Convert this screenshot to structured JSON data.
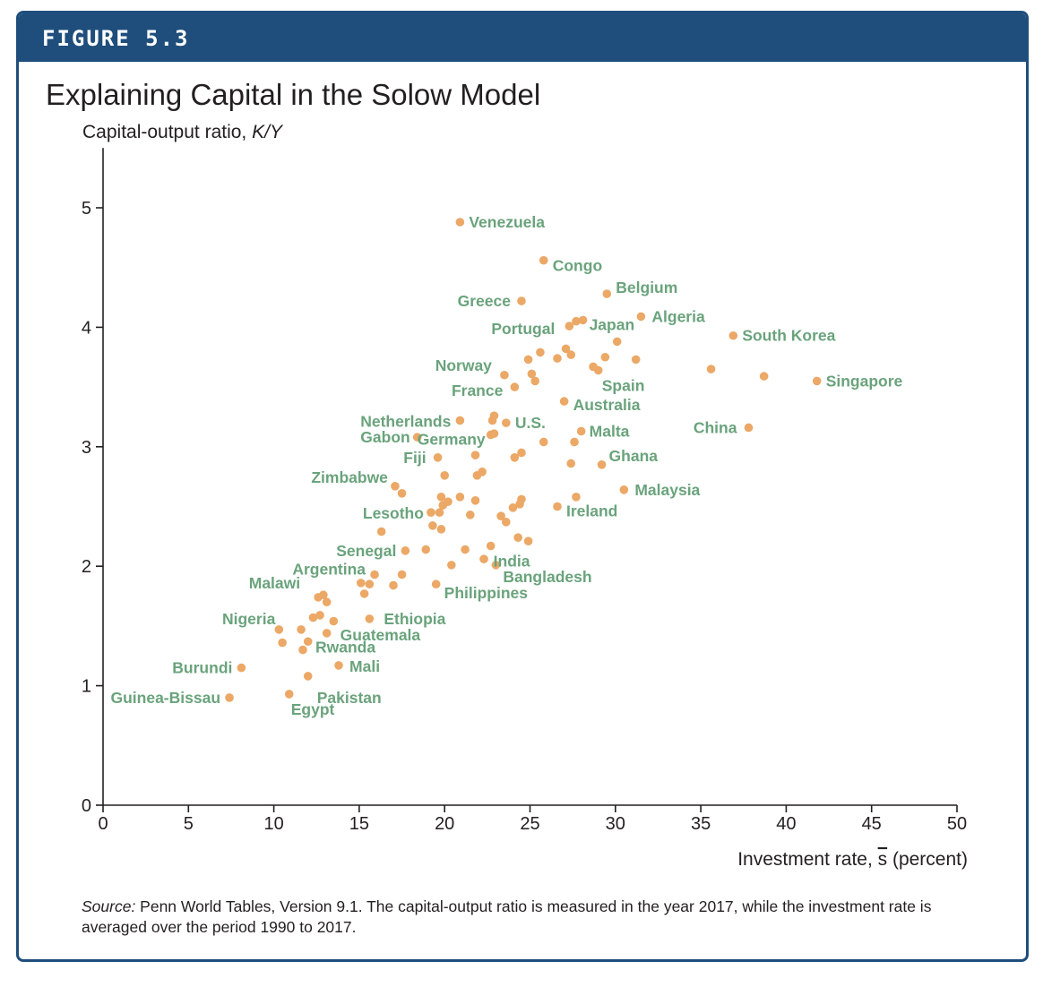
{
  "figure_label": "FIGURE 5.3",
  "colors": {
    "banner": "#1f4e7c",
    "point": "#eba866",
    "label": "#6aa37c",
    "text": "#231f20"
  },
  "source_note": {
    "prefix": "Source:",
    "text": " Penn World Tables, Version 9.1. The capital-output ratio is measured in the year 2017, while the investment rate is averaged over the period 1990 to 2017."
  },
  "chart_data": {
    "type": "scatter",
    "title": "Explaining Capital in the Solow Model",
    "ylabel": "Capital-output ratio, ",
    "ylabel_italic": "K/Y",
    "xlabel": "Investment rate, ",
    "xlabel_symbol": "s",
    "xlabel_suffix": " (percent)",
    "xlim": [
      0,
      50
    ],
    "ylim": [
      0,
      5.5
    ],
    "xticks": [
      0,
      5,
      10,
      15,
      20,
      25,
      30,
      35,
      40,
      45,
      50
    ],
    "yticks": [
      0,
      1,
      2,
      3,
      4,
      5
    ],
    "grid": false,
    "points": [
      {
        "x": 20.9,
        "y": 4.88,
        "label": "Venezuela"
      },
      {
        "x": 25.8,
        "y": 4.56,
        "label": "Congo"
      },
      {
        "x": 29.5,
        "y": 4.28,
        "label": "Belgium"
      },
      {
        "x": 24.5,
        "y": 4.22,
        "label": "Greece"
      },
      {
        "x": 31.5,
        "y": 4.09,
        "label": "Algeria"
      },
      {
        "x": 27.7,
        "y": 4.05
      },
      {
        "x": 28.1,
        "y": 4.06,
        "label": "Japan"
      },
      {
        "x": 27.3,
        "y": 4.01,
        "label": "Portugal"
      },
      {
        "x": 36.9,
        "y": 3.93,
        "label": "South Korea"
      },
      {
        "x": 30.1,
        "y": 3.88
      },
      {
        "x": 27.1,
        "y": 3.82
      },
      {
        "x": 25.6,
        "y": 3.79
      },
      {
        "x": 24.9,
        "y": 3.73
      },
      {
        "x": 26.6,
        "y": 3.74
      },
      {
        "x": 27.4,
        "y": 3.77
      },
      {
        "x": 29.4,
        "y": 3.75
      },
      {
        "x": 31.2,
        "y": 3.73
      },
      {
        "x": 28.7,
        "y": 3.67
      },
      {
        "x": 29.0,
        "y": 3.64,
        "label": "Spain"
      },
      {
        "x": 35.6,
        "y": 3.65
      },
      {
        "x": 38.7,
        "y": 3.59
      },
      {
        "x": 41.8,
        "y": 3.55,
        "label": "Singapore"
      },
      {
        "x": 23.5,
        "y": 3.6,
        "label": "Norway"
      },
      {
        "x": 25.1,
        "y": 3.61
      },
      {
        "x": 25.3,
        "y": 3.55
      },
      {
        "x": 24.1,
        "y": 3.5,
        "label": "France"
      },
      {
        "x": 27.0,
        "y": 3.38,
        "label": "Australia"
      },
      {
        "x": 22.9,
        "y": 3.26
      },
      {
        "x": 20.9,
        "y": 3.22,
        "label": "Netherlands"
      },
      {
        "x": 22.8,
        "y": 3.22
      },
      {
        "x": 23.6,
        "y": 3.2,
        "label": "U.S."
      },
      {
        "x": 28.0,
        "y": 3.13,
        "label": "Malta"
      },
      {
        "x": 37.8,
        "y": 3.16,
        "label": "China"
      },
      {
        "x": 18.4,
        "y": 3.08,
        "label": "Gabon"
      },
      {
        "x": 22.7,
        "y": 3.1,
        "label": "Germany"
      },
      {
        "x": 22.9,
        "y": 3.11
      },
      {
        "x": 25.8,
        "y": 3.04
      },
      {
        "x": 27.6,
        "y": 3.04
      },
      {
        "x": 24.5,
        "y": 2.95
      },
      {
        "x": 21.8,
        "y": 2.93
      },
      {
        "x": 19.6,
        "y": 2.91,
        "label": "Fiji"
      },
      {
        "x": 24.1,
        "y": 2.91
      },
      {
        "x": 29.2,
        "y": 2.85,
        "label": "Ghana"
      },
      {
        "x": 27.4,
        "y": 2.86
      },
      {
        "x": 22.2,
        "y": 2.79
      },
      {
        "x": 21.9,
        "y": 2.76
      },
      {
        "x": 20.0,
        "y": 2.76
      },
      {
        "x": 17.1,
        "y": 2.67,
        "label": "Zimbabwe"
      },
      {
        "x": 30.5,
        "y": 2.64,
        "label": "Malaysia"
      },
      {
        "x": 17.5,
        "y": 2.61
      },
      {
        "x": 19.8,
        "y": 2.58
      },
      {
        "x": 20.9,
        "y": 2.58
      },
      {
        "x": 27.7,
        "y": 2.58
      },
      {
        "x": 20.2,
        "y": 2.54
      },
      {
        "x": 21.8,
        "y": 2.55
      },
      {
        "x": 24.5,
        "y": 2.56
      },
      {
        "x": 19.9,
        "y": 2.51
      },
      {
        "x": 24.4,
        "y": 2.52
      },
      {
        "x": 24.0,
        "y": 2.49
      },
      {
        "x": 26.6,
        "y": 2.5,
        "label": "Ireland"
      },
      {
        "x": 19.2,
        "y": 2.45,
        "label": "Lesotho"
      },
      {
        "x": 19.7,
        "y": 2.45
      },
      {
        "x": 21.5,
        "y": 2.43
      },
      {
        "x": 23.3,
        "y": 2.42
      },
      {
        "x": 23.6,
        "y": 2.37
      },
      {
        "x": 19.3,
        "y": 2.34
      },
      {
        "x": 19.8,
        "y": 2.31
      },
      {
        "x": 16.3,
        "y": 2.29
      },
      {
        "x": 24.3,
        "y": 2.24
      },
      {
        "x": 24.9,
        "y": 2.21
      },
      {
        "x": 22.7,
        "y": 2.17,
        "label": "India"
      },
      {
        "x": 17.7,
        "y": 2.13,
        "label": "Senegal"
      },
      {
        "x": 18.9,
        "y": 2.14
      },
      {
        "x": 21.2,
        "y": 2.14
      },
      {
        "x": 22.3,
        "y": 2.06
      },
      {
        "x": 23.0,
        "y": 2.01,
        "label": "Bangladesh"
      },
      {
        "x": 20.4,
        "y": 2.01
      },
      {
        "x": 15.9,
        "y": 1.93,
        "label": "Argentina"
      },
      {
        "x": 17.5,
        "y": 1.93
      },
      {
        "x": 15.1,
        "y": 1.86
      },
      {
        "x": 15.6,
        "y": 1.85
      },
      {
        "x": 17.0,
        "y": 1.84
      },
      {
        "x": 19.5,
        "y": 1.85,
        "label": "Philippines"
      },
      {
        "x": 15.3,
        "y": 1.77
      },
      {
        "x": 12.6,
        "y": 1.74,
        "label": "Malawi"
      },
      {
        "x": 12.9,
        "y": 1.76
      },
      {
        "x": 13.1,
        "y": 1.7
      },
      {
        "x": 12.3,
        "y": 1.57
      },
      {
        "x": 12.7,
        "y": 1.59
      },
      {
        "x": 13.5,
        "y": 1.54
      },
      {
        "x": 15.6,
        "y": 1.56,
        "label": "Ethiopia"
      },
      {
        "x": 10.3,
        "y": 1.47,
        "label": "Nigeria"
      },
      {
        "x": 11.6,
        "y": 1.47
      },
      {
        "x": 13.1,
        "y": 1.44,
        "label": "Guatemala"
      },
      {
        "x": 10.5,
        "y": 1.36
      },
      {
        "x": 12.0,
        "y": 1.37
      },
      {
        "x": 11.7,
        "y": 1.3,
        "label": "Rwanda"
      },
      {
        "x": 8.1,
        "y": 1.15,
        "label": "Burundi"
      },
      {
        "x": 13.8,
        "y": 1.17,
        "label": "Mali"
      },
      {
        "x": 12.0,
        "y": 1.08,
        "label": "Pakistan"
      },
      {
        "x": 7.4,
        "y": 0.9,
        "label": "Guinea-Bissau"
      },
      {
        "x": 10.9,
        "y": 0.93,
        "label": "Egypt"
      }
    ]
  }
}
